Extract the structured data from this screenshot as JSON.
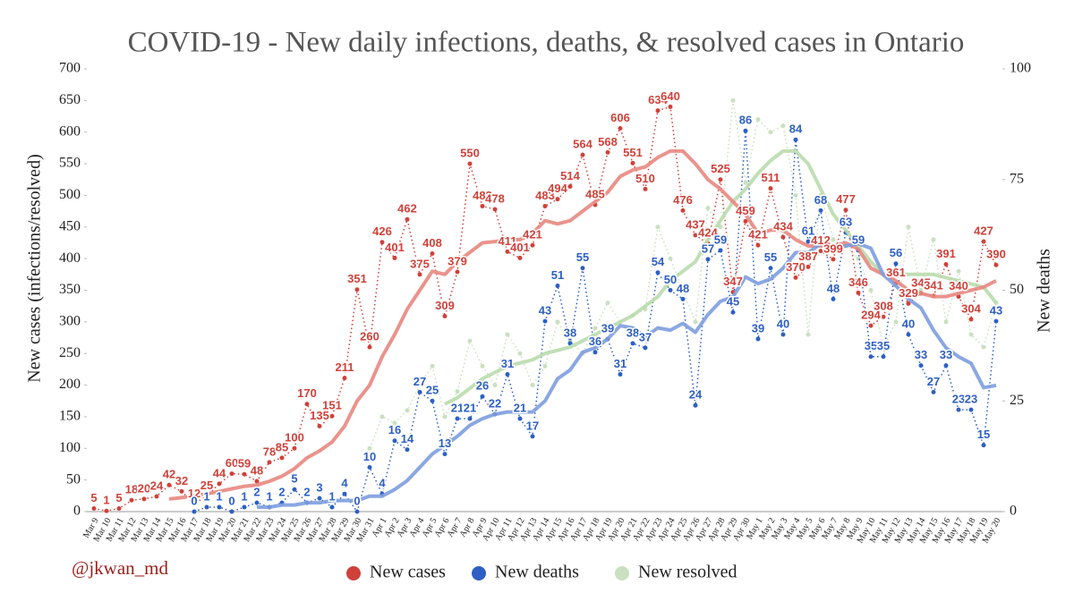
{
  "chart_data": {
    "type": "line",
    "title": "COVID-19 - New daily infections, deaths, & resolved cases in Ontario",
    "y_label": "New cases (infections/resolved)",
    "y2_label": "New deaths",
    "credit": "@jkwan_md",
    "ylim": [
      0,
      700
    ],
    "yticks": [
      0,
      50,
      100,
      150,
      200,
      250,
      300,
      350,
      400,
      450,
      500,
      550,
      600,
      650,
      700
    ],
    "y2lim": [
      0,
      100
    ],
    "y2ticks": [
      0,
      25,
      50,
      75,
      100
    ],
    "grid": false,
    "legend": "bottom",
    "categories": [
      "Mar 9",
      "Mar 10",
      "Mar 11",
      "Mar 12",
      "Mar 13",
      "Mar 14",
      "Mar 15",
      "Mar 16",
      "Mar 17",
      "Mar 18",
      "Mar 19",
      "Mar 20",
      "Mar 21",
      "Mar 22",
      "Mar 23",
      "Mar 24",
      "Mar 25",
      "Mar 26",
      "Mar 27",
      "Mar 28",
      "Mar 29",
      "Mar 30",
      "Mar 31",
      "Apr 1",
      "Apr 2",
      "Apr 3",
      "Apr 4",
      "Apr 5",
      "Apr 6",
      "Apr 7",
      "Apr 8",
      "Apr 9",
      "Apr 10",
      "Apr 11",
      "Apr 12",
      "Apr 13",
      "Apr 14",
      "Apr 15",
      "Apr 16",
      "Apr 17",
      "Apr 18",
      "Apr 19",
      "Apr 20",
      "Apr 21",
      "Apr 22",
      "Apr 23",
      "Apr 24",
      "Apr 25",
      "Apr 26",
      "Apr 27",
      "Apr 28",
      "Apr 29",
      "Apr 30",
      "May 1",
      "May 2",
      "May 3",
      "May 4",
      "May 5",
      "May 6",
      "May 7",
      "May 8",
      "May 9",
      "May 10",
      "May 11",
      "May 12",
      "May 13",
      "May 14",
      "May 15",
      "May 16",
      "May 17",
      "May 18",
      "May 19",
      "May 20"
    ],
    "series": [
      {
        "name": "New resolved",
        "color": "#c9e0c1",
        "trend_color": "#b9dbad",
        "labels": false,
        "values": [
          null,
          null,
          null,
          null,
          null,
          null,
          null,
          null,
          null,
          null,
          null,
          null,
          null,
          null,
          null,
          null,
          null,
          null,
          null,
          null,
          null,
          null,
          100,
          150,
          140,
          160,
          200,
          230,
          150,
          190,
          270,
          230,
          200,
          280,
          250,
          200,
          230,
          300,
          270,
          250,
          290,
          330,
          300,
          310,
          320,
          450,
          400,
          350,
          300,
          480,
          450,
          650,
          520,
          620,
          600,
          610,
          500,
          280,
          500,
          430,
          420,
          400,
          350,
          260,
          300,
          450,
          350,
          430,
          300,
          380,
          280,
          260,
          330
        ],
        "trend": [
          null,
          null,
          null,
          null,
          null,
          null,
          null,
          null,
          null,
          null,
          null,
          null,
          null,
          null,
          null,
          null,
          null,
          null,
          null,
          null,
          null,
          null,
          null,
          null,
          null,
          null,
          null,
          null,
          170,
          180,
          195,
          210,
          220,
          230,
          235,
          240,
          250,
          255,
          260,
          270,
          280,
          290,
          300,
          310,
          325,
          340,
          365,
          380,
          395,
          430,
          460,
          490,
          510,
          535,
          555,
          570,
          570,
          550,
          510,
          470,
          445,
          420,
          395,
          375,
          375,
          375,
          375,
          375,
          370,
          365,
          360,
          355,
          330
        ]
      },
      {
        "name": "New cases",
        "color": "#d0413a",
        "trend_color": "#e8877f",
        "labels": true,
        "values": [
          5,
          1,
          5,
          18,
          20,
          24,
          42,
          32,
          12,
          25,
          44,
          60,
          59,
          48,
          78,
          85,
          100,
          170,
          135,
          151,
          211,
          351,
          260,
          426,
          401,
          462,
          375,
          408,
          309,
          379,
          550,
          483,
          478,
          411,
          401,
          421,
          483,
          494,
          514,
          564,
          485,
          568,
          606,
          551,
          510,
          634,
          640,
          476,
          437,
          424,
          525,
          347,
          459,
          421,
          511,
          434,
          370,
          387,
          412,
          399,
          477,
          346,
          294,
          308,
          361,
          329,
          345,
          341,
          391,
          340,
          304,
          427,
          390
        ],
        "trend": [
          null,
          null,
          null,
          null,
          null,
          null,
          20,
          22,
          25,
          28,
          32,
          36,
          40,
          42,
          48,
          56,
          68,
          85,
          96,
          110,
          135,
          175,
          200,
          245,
          280,
          320,
          350,
          380,
          375,
          395,
          410,
          425,
          427,
          430,
          430,
          440,
          460,
          455,
          460,
          475,
          490,
          505,
          530,
          540,
          545,
          560,
          570,
          570,
          550,
          525,
          510,
          490,
          470,
          440,
          445,
          445,
          430,
          420,
          420,
          420,
          425,
          415,
          385,
          375,
          365,
          350,
          345,
          340,
          340,
          345,
          350,
          355,
          365
        ]
      },
      {
        "name": "New deaths",
        "color": "#2d5fc4",
        "trend_color": "#7d9ddf",
        "labels": true,
        "axis": "y2",
        "values": [
          null,
          null,
          null,
          null,
          null,
          null,
          null,
          null,
          0,
          1,
          1,
          0,
          1,
          2,
          1,
          2,
          5,
          2,
          3,
          1,
          4,
          0,
          10,
          4,
          16,
          14,
          27,
          25,
          13,
          21,
          21,
          26,
          22,
          31,
          21,
          17,
          43,
          51,
          38,
          55,
          36,
          39,
          31,
          38,
          37,
          54,
          50,
          48,
          24,
          57,
          59,
          45,
          86,
          39,
          55,
          40,
          84,
          61,
          68,
          48,
          63,
          59,
          35,
          35,
          56,
          40,
          33,
          27,
          33,
          23,
          23,
          15,
          43
        ],
        "trend": [
          null,
          null,
          null,
          null,
          null,
          null,
          null,
          null,
          null,
          null,
          null,
          null,
          null,
          1,
          1,
          1.5,
          1.5,
          2,
          2,
          2.5,
          2.5,
          2.5,
          3.5,
          3.5,
          5,
          7,
          10,
          13,
          15,
          17,
          19.5,
          21,
          22,
          22.5,
          22.5,
          22.5,
          25,
          30,
          32,
          36,
          37,
          39,
          42,
          41.5,
          39.5,
          41.5,
          41,
          42.5,
          40.5,
          44.5,
          47.5,
          48.5,
          53,
          51.5,
          52.5,
          55,
          58.5,
          58.5,
          60.5,
          59.5,
          60,
          60.5,
          59.5,
          53.5,
          51,
          48,
          46,
          41,
          37,
          35,
          33.5,
          28,
          28.5
        ]
      }
    ]
  }
}
